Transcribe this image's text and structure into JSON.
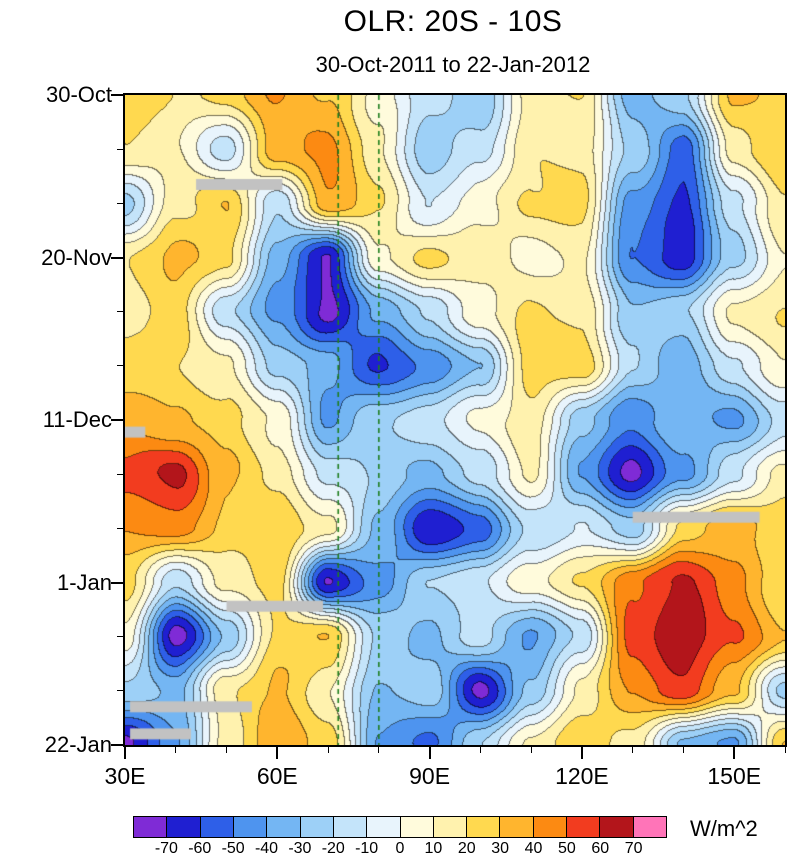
{
  "chart_data": {
    "type": "heatmap",
    "title": "OLR: 20S - 10S",
    "subtitle": "30-Oct-2011 to 22-Jan-2012",
    "units_label": "W/m^2",
    "x_axis": {
      "labels": [
        "30E",
        "60E",
        "90E",
        "120E",
        "150E"
      ],
      "label_lons": [
        30,
        60,
        90,
        120,
        150
      ],
      "minor_tick_step_deg": 10,
      "lon_range": [
        30,
        160
      ]
    },
    "y_axis": {
      "labels": [
        "30-Oct",
        "20-Nov",
        "11-Dec",
        "1-Jan",
        "22-Jan"
      ],
      "label_days": [
        0,
        21,
        42,
        63,
        84
      ],
      "minor_tick_step_days": 7,
      "total_days": 84
    },
    "levels": [
      -70,
      -60,
      -50,
      -40,
      -30,
      -20,
      -10,
      0,
      10,
      20,
      30,
      40,
      50,
      60,
      70
    ],
    "colorbar_labels": [
      "-70",
      "-60",
      "-50",
      "-40",
      "-30",
      "-20",
      "-10",
      "0",
      "10",
      "20",
      "30",
      "40",
      "50",
      "60",
      "70"
    ],
    "colors": [
      "#7F2BD6",
      "#1F1FD1",
      "#2E5FE8",
      "#4E94EF",
      "#74B6F3",
      "#9DD0F7",
      "#C4E4FA",
      "#E8F4FC",
      "#FFFBDC",
      "#FFF2AE",
      "#FFD94F",
      "#FFB52E",
      "#FC8A12",
      "#F23C1F",
      "#B3151B",
      "#FF74B8"
    ],
    "reference_lines": {
      "lons": [
        72,
        80
      ],
      "color": "#1E7E1E",
      "style": "dashed"
    },
    "missing_data_bars": [
      {
        "day": 11.5,
        "lon_start": 44,
        "lon_end": 61
      },
      {
        "day": 43.5,
        "lon_start": 30,
        "lon_end": 34
      },
      {
        "day": 54.5,
        "lon_start": 130,
        "lon_end": 155
      },
      {
        "day": 66,
        "lon_start": 50,
        "lon_end": 69
      },
      {
        "day": 79,
        "lon_start": 31,
        "lon_end": 55
      },
      {
        "day": 82.5,
        "lon_start": 31,
        "lon_end": 43
      }
    ],
    "grid_lons": [
      30,
      40,
      50,
      60,
      70,
      80,
      90,
      100,
      110,
      120,
      130,
      140,
      150,
      160
    ],
    "grid_dates": [
      "30-Oct",
      "6-Nov",
      "13-Nov",
      "20-Nov",
      "27-Nov",
      "4-Dec",
      "11-Dec",
      "18-Dec",
      "25-Dec",
      "1-Jan",
      "8-Jan",
      "15-Jan",
      "22-Jan"
    ],
    "grid_values": [
      [
        28,
        18,
        22,
        42,
        30,
        8,
        -18,
        -28,
        12,
        22,
        -35,
        -20,
        30,
        26
      ],
      [
        22,
        10,
        -15,
        35,
        45,
        12,
        -25,
        -15,
        18,
        15,
        -20,
        -55,
        15,
        28
      ],
      [
        -25,
        15,
        28,
        -18,
        38,
        22,
        -12,
        5,
        20,
        24,
        -45,
        -62,
        -15,
        18
      ],
      [
        18,
        32,
        22,
        -35,
        -72,
        8,
        22,
        14,
        5,
        12,
        -52,
        -66,
        -25,
        8
      ],
      [
        12,
        28,
        -18,
        -42,
        -72,
        -38,
        -18,
        8,
        22,
        18,
        -28,
        -22,
        12,
        22
      ],
      [
        26,
        22,
        12,
        -22,
        -35,
        -62,
        -48,
        -28,
        24,
        28,
        -18,
        -38,
        -12,
        12
      ],
      [
        38,
        30,
        24,
        6,
        -42,
        -22,
        -12,
        2,
        16,
        -28,
        -48,
        -32,
        -42,
        -18
      ],
      [
        55,
        62,
        32,
        14,
        -12,
        -22,
        -32,
        -18,
        12,
        -42,
        -72,
        -42,
        -12,
        12
      ],
      [
        38,
        46,
        26,
        30,
        12,
        -32,
        -72,
        -55,
        -18,
        -8,
        -28,
        22,
        35,
        26
      ],
      [
        22,
        -18,
        12,
        26,
        -72,
        -45,
        -22,
        -12,
        6,
        22,
        46,
        62,
        42,
        22
      ],
      [
        8,
        -74,
        -28,
        22,
        32,
        -22,
        -32,
        -14,
        -42,
        -18,
        56,
        68,
        52,
        32
      ],
      [
        -22,
        -32,
        18,
        32,
        12,
        -32,
        -22,
        -72,
        -28,
        12,
        42,
        56,
        32,
        -22
      ],
      [
        -72,
        -42,
        14,
        36,
        26,
        -42,
        -52,
        -22,
        12,
        26,
        16,
        -32,
        -42,
        28
      ]
    ]
  }
}
